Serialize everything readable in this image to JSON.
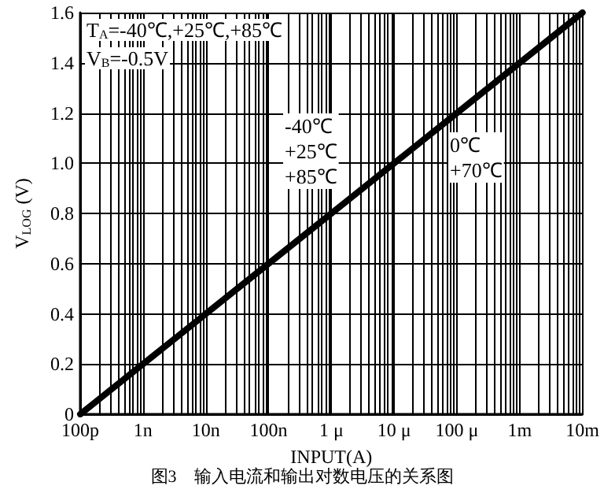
{
  "chart_data": {
    "type": "line",
    "xlabel": "INPUT(A)",
    "ylabel": "V$_{LOG}$ (V)",
    "categories": [
      "100p",
      "1n",
      "10n",
      "100n",
      "1 μ",
      "10 μ",
      "100 μ",
      "1m",
      "10m"
    ],
    "series": [
      {
        "color": "#000000",
        "values": [
          0,
          0.2,
          0.4,
          0.6,
          0.8,
          1.0,
          1.2,
          1.4,
          1.6
        ]
      }
    ],
    "grid": true,
    "marker": "none",
    "line_style": "solid",
    "ylim": [
      0,
      1.6
    ],
    "yticks": [
      0,
      0.2,
      0.4,
      0.6,
      0.8,
      {
        "value": 1,
        "label": "1.0"
      },
      1.2,
      1.4,
      1.6
    ],
    "annotations": [
      "T$_{A}$=-40℃,+25℃,+85℃",
      "V$_{B}$=-0.5V",
      "-40℃\n+25℃\n+85℃",
      "0℃\n+70℃",
      "图3　输入电流和输出对数电压的关系图"
    ]
  }
}
